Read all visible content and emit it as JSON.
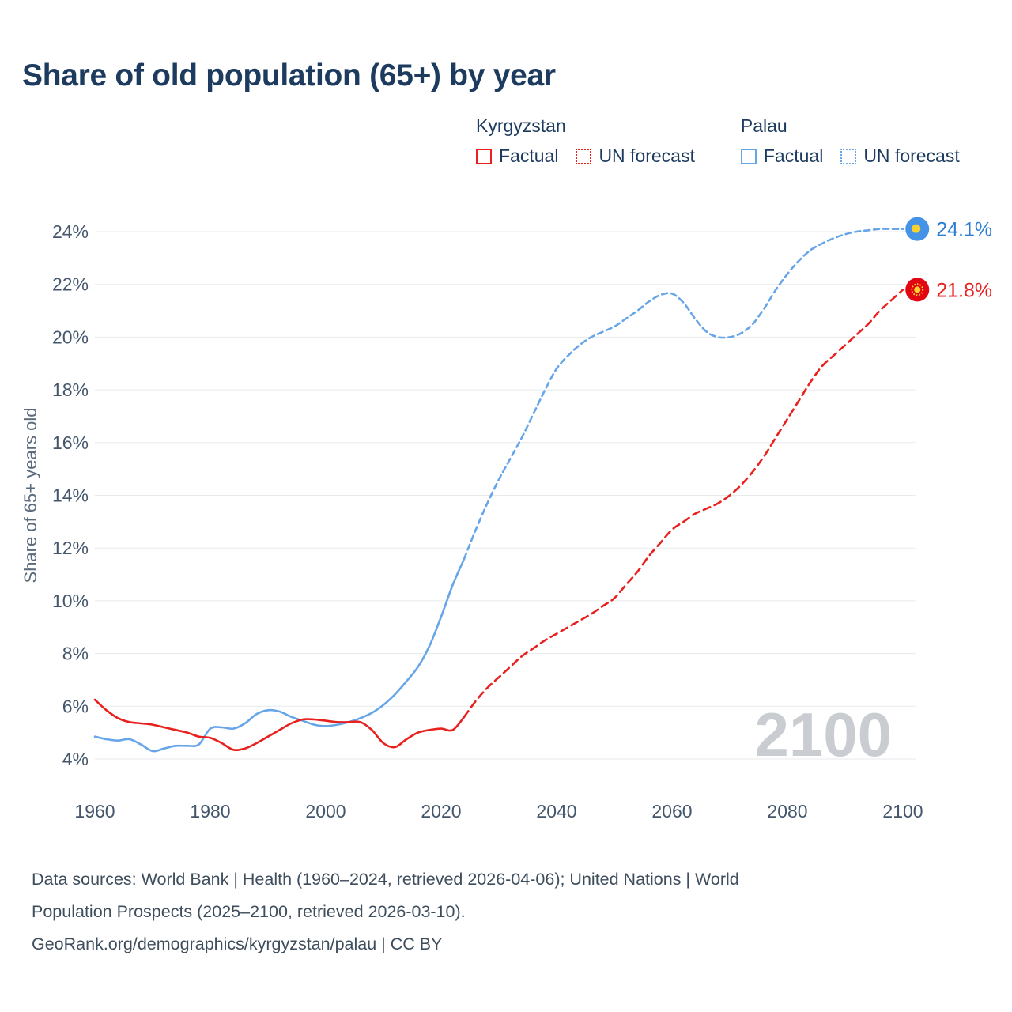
{
  "title": "Share of old population (65+) by year",
  "legend": {
    "groups": [
      {
        "country": "Kyrgyzstan",
        "color_key": "kyrgyzstan",
        "items": [
          {
            "label": "Factual",
            "style": "solid"
          },
          {
            "label": "UN forecast",
            "style": "dotted"
          }
        ]
      },
      {
        "country": "Palau",
        "color_key": "palau",
        "items": [
          {
            "label": "Factual",
            "style": "solid"
          },
          {
            "label": "UN forecast",
            "style": "dotted"
          }
        ]
      }
    ]
  },
  "colors": {
    "kyrgyzstan": "#e8201e",
    "palau": "#66a5e8",
    "kyrgyzstan_label": "#e8201e",
    "palau_label": "#2e7fd4",
    "flag_yellow": "#f8d12e",
    "palau_marker": "#4493e6",
    "kyrgyzstan_marker": "#e20613",
    "title": "#1d3b5f",
    "axis_text": "#44566c",
    "grid": "#e8eaec",
    "watermark": "#c9cdd2",
    "footer_text": "#3f4e5d"
  },
  "footer": {
    "lines": [
      "Data sources: World Bank | Health (1960–2024, retrieved 2026-04-06); United Nations | World",
      "Population Prospects (2025–2100, retrieved 2026-03-10).",
      "GeoRank.org/demographics/kyrgyzstan/palau | CC BY"
    ]
  },
  "chart_data": {
    "type": "line",
    "title": "Share of old population (65+) by year",
    "ylabel": "Share of 65+ years old",
    "xlabel": "",
    "xlim": [
      1960,
      2100
    ],
    "ylim": [
      4,
      24
    ],
    "xticks": [
      1960,
      1980,
      2000,
      2020,
      2040,
      2060,
      2080,
      2100
    ],
    "yticks": [
      4,
      6,
      8,
      10,
      12,
      14,
      16,
      18,
      20,
      22,
      24
    ],
    "grid": "horizontal",
    "legend_position": "top-right",
    "watermark": "2100",
    "series": [
      {
        "name": "Palau Factual",
        "color_key": "palau",
        "dashed": false,
        "points": [
          [
            1960,
            4.85
          ],
          [
            1962,
            4.75
          ],
          [
            1964,
            4.7
          ],
          [
            1966,
            4.75
          ],
          [
            1968,
            4.55
          ],
          [
            1970,
            4.3
          ],
          [
            1972,
            4.4
          ],
          [
            1974,
            4.5
          ],
          [
            1976,
            4.5
          ],
          [
            1978,
            4.55
          ],
          [
            1980,
            5.15
          ],
          [
            1982,
            5.2
          ],
          [
            1984,
            5.15
          ],
          [
            1986,
            5.35
          ],
          [
            1988,
            5.7
          ],
          [
            1990,
            5.85
          ],
          [
            1992,
            5.8
          ],
          [
            1994,
            5.6
          ],
          [
            1996,
            5.45
          ],
          [
            1998,
            5.3
          ],
          [
            2000,
            5.25
          ],
          [
            2002,
            5.3
          ],
          [
            2004,
            5.4
          ],
          [
            2006,
            5.55
          ],
          [
            2008,
            5.75
          ],
          [
            2010,
            6.05
          ],
          [
            2012,
            6.45
          ],
          [
            2014,
            6.95
          ],
          [
            2016,
            7.5
          ],
          [
            2018,
            8.3
          ],
          [
            2020,
            9.4
          ],
          [
            2022,
            10.6
          ],
          [
            2024,
            11.6
          ]
        ]
      },
      {
        "name": "Palau UN forecast",
        "color_key": "palau",
        "dashed": true,
        "points": [
          [
            2024,
            11.6
          ],
          [
            2026,
            12.7
          ],
          [
            2028,
            13.7
          ],
          [
            2030,
            14.6
          ],
          [
            2032,
            15.4
          ],
          [
            2034,
            16.2
          ],
          [
            2036,
            17.1
          ],
          [
            2038,
            18.0
          ],
          [
            2040,
            18.8
          ],
          [
            2042,
            19.3
          ],
          [
            2044,
            19.7
          ],
          [
            2046,
            20.0
          ],
          [
            2048,
            20.2
          ],
          [
            2050,
            20.4
          ],
          [
            2052,
            20.7
          ],
          [
            2054,
            21.0
          ],
          [
            2056,
            21.35
          ],
          [
            2058,
            21.6
          ],
          [
            2060,
            21.65
          ],
          [
            2062,
            21.3
          ],
          [
            2064,
            20.7
          ],
          [
            2066,
            20.2
          ],
          [
            2068,
            20.0
          ],
          [
            2070,
            20.0
          ],
          [
            2072,
            20.15
          ],
          [
            2074,
            20.5
          ],
          [
            2076,
            21.1
          ],
          [
            2078,
            21.8
          ],
          [
            2080,
            22.4
          ],
          [
            2082,
            22.9
          ],
          [
            2084,
            23.3
          ],
          [
            2086,
            23.55
          ],
          [
            2088,
            23.75
          ],
          [
            2090,
            23.9
          ],
          [
            2092,
            24.0
          ],
          [
            2094,
            24.05
          ],
          [
            2096,
            24.1
          ],
          [
            2098,
            24.1
          ],
          [
            2100,
            24.1
          ]
        ]
      },
      {
        "name": "Kyrgyzstan Factual",
        "color_key": "kyrgyzstan",
        "dashed": false,
        "points": [
          [
            1960,
            6.25
          ],
          [
            1962,
            5.85
          ],
          [
            1964,
            5.55
          ],
          [
            1966,
            5.4
          ],
          [
            1968,
            5.35
          ],
          [
            1970,
            5.3
          ],
          [
            1972,
            5.2
          ],
          [
            1974,
            5.1
          ],
          [
            1976,
            5.0
          ],
          [
            1978,
            4.85
          ],
          [
            1980,
            4.8
          ],
          [
            1982,
            4.6
          ],
          [
            1984,
            4.35
          ],
          [
            1986,
            4.4
          ],
          [
            1988,
            4.6
          ],
          [
            1990,
            4.85
          ],
          [
            1992,
            5.1
          ],
          [
            1994,
            5.35
          ],
          [
            1996,
            5.5
          ],
          [
            1998,
            5.5
          ],
          [
            2000,
            5.45
          ],
          [
            2002,
            5.4
          ],
          [
            2004,
            5.4
          ],
          [
            2006,
            5.4
          ],
          [
            2008,
            5.1
          ],
          [
            2010,
            4.6
          ],
          [
            2012,
            4.45
          ],
          [
            2014,
            4.75
          ],
          [
            2016,
            5.0
          ],
          [
            2018,
            5.1
          ],
          [
            2020,
            5.15
          ],
          [
            2022,
            5.1
          ],
          [
            2024,
            5.6
          ]
        ]
      },
      {
        "name": "Kyrgyzstan UN forecast",
        "color_key": "kyrgyzstan",
        "dashed": true,
        "points": [
          [
            2024,
            5.6
          ],
          [
            2026,
            6.2
          ],
          [
            2028,
            6.7
          ],
          [
            2030,
            7.1
          ],
          [
            2032,
            7.5
          ],
          [
            2034,
            7.9
          ],
          [
            2036,
            8.2
          ],
          [
            2038,
            8.5
          ],
          [
            2040,
            8.75
          ],
          [
            2042,
            9.0
          ],
          [
            2044,
            9.25
          ],
          [
            2046,
            9.5
          ],
          [
            2048,
            9.8
          ],
          [
            2050,
            10.1
          ],
          [
            2052,
            10.6
          ],
          [
            2054,
            11.1
          ],
          [
            2056,
            11.7
          ],
          [
            2058,
            12.2
          ],
          [
            2060,
            12.7
          ],
          [
            2062,
            13.0
          ],
          [
            2064,
            13.3
          ],
          [
            2066,
            13.5
          ],
          [
            2068,
            13.7
          ],
          [
            2070,
            14.0
          ],
          [
            2072,
            14.4
          ],
          [
            2074,
            14.9
          ],
          [
            2076,
            15.5
          ],
          [
            2078,
            16.2
          ],
          [
            2080,
            16.9
          ],
          [
            2082,
            17.6
          ],
          [
            2084,
            18.3
          ],
          [
            2086,
            18.9
          ],
          [
            2088,
            19.3
          ],
          [
            2090,
            19.7
          ],
          [
            2092,
            20.1
          ],
          [
            2094,
            20.5
          ],
          [
            2096,
            21.0
          ],
          [
            2098,
            21.4
          ],
          [
            2100,
            21.8
          ]
        ]
      }
    ],
    "end_markers": [
      {
        "country": "Palau",
        "flag": "palau",
        "x": 2102.5,
        "y": 24.1,
        "label": "24.1%"
      },
      {
        "country": "Kyrgyzstan",
        "flag": "kyrgyzstan",
        "x": 2102.5,
        "y": 21.8,
        "label": "21.8%"
      }
    ]
  }
}
